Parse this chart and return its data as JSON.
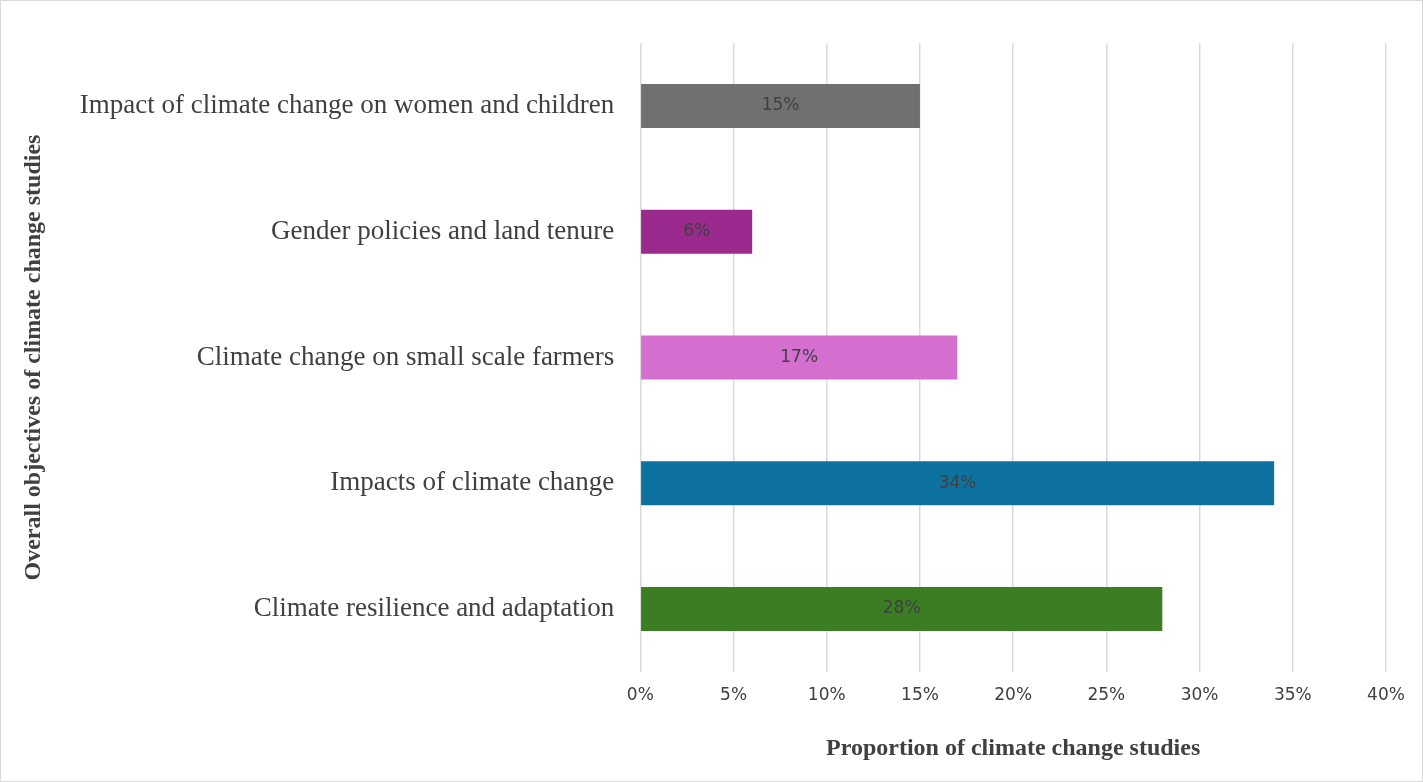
{
  "chart_data": {
    "type": "bar",
    "orientation": "horizontal",
    "xlabel": "Proportion of climate change studies",
    "ylabel": "Overall objectives of climate change studies",
    "categories": [
      "Impact of climate change on women and children",
      "Gender policies and land tenure",
      "Climate change on small scale farmers",
      "Impacts of climate change",
      "Climate resilience and adaptation"
    ],
    "values": [
      15,
      6,
      17,
      34,
      28
    ],
    "colors": [
      "#707070",
      "#9b2a8e",
      "#d56fcf",
      "#0e72a0",
      "#3a7d23"
    ],
    "value_labels": [
      "15%",
      "6%",
      "17%",
      "34%",
      "28%"
    ],
    "xlim": [
      0,
      40
    ],
    "xticks": [
      {
        "value": 0,
        "label": "0%"
      },
      {
        "value": 5,
        "label": "5%"
      },
      {
        "value": 10,
        "label": "10%"
      },
      {
        "value": 15,
        "label": "15%"
      },
      {
        "value": 20,
        "label": "20%"
      },
      {
        "value": 25,
        "label": "25%"
      },
      {
        "value": 30,
        "label": "30%"
      },
      {
        "value": 35,
        "label": "35%"
      },
      {
        "value": 40,
        "label": "40%"
      }
    ],
    "grid": "x",
    "legend": false
  }
}
